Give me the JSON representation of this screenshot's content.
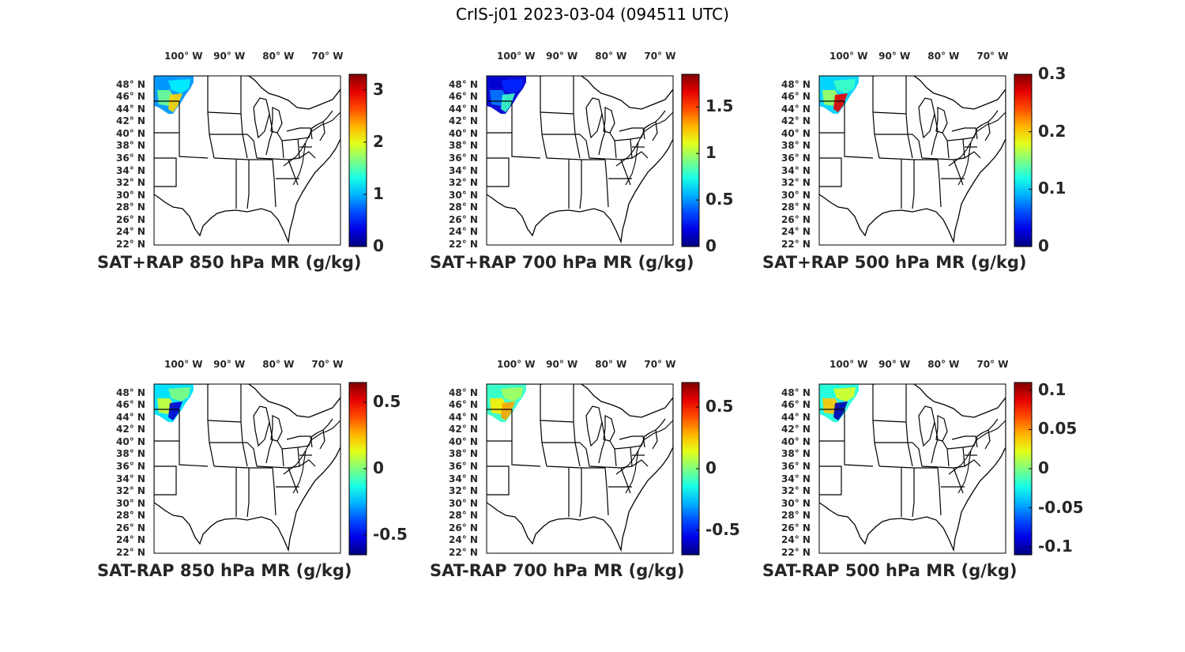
{
  "figure": {
    "title": "CrIS-j01 2023-03-04 (094511 UTC)"
  },
  "axes": {
    "lon_labels": [
      "100° W",
      "90° W",
      "80° W",
      "70° W"
    ],
    "lon_values": [
      100,
      90,
      80,
      70
    ],
    "lat_labels": [
      "48° N",
      "46° N",
      "44° N",
      "42° N",
      "40° N",
      "38° N",
      "36° N",
      "34° N",
      "32° N",
      "30° N",
      "28° N",
      "26° N",
      "24° N",
      "22° N"
    ],
    "lat_values": [
      48,
      46,
      44,
      42,
      40,
      38,
      36,
      34,
      32,
      30,
      28,
      26,
      24,
      22
    ],
    "extent": {
      "lon_min": -105,
      "lon_max": -67,
      "lat_min": 22,
      "lat_max": 49.5
    }
  },
  "colormap": "jet",
  "panels": [
    {
      "title": "SAT+RAP 850 hPa MR (g/kg)",
      "clim": [
        0,
        3.3
      ],
      "colorbar_ticks": [
        0,
        1,
        2,
        3
      ],
      "colorbar_tick_labels": [
        "0",
        "1",
        "2",
        "3"
      ],
      "field_levels": [
        0.9,
        1.2,
        1.6,
        2.2
      ]
    },
    {
      "title": "SAT+RAP 700 hPa MR (g/kg)",
      "clim": [
        0,
        1.85
      ],
      "colorbar_ticks": [
        0,
        0.5,
        1,
        1.5
      ],
      "colorbar_tick_labels": [
        "0",
        "0.5",
        "1",
        "1.5"
      ],
      "field_levels": [
        0.15,
        0.3,
        0.45,
        0.8
      ]
    },
    {
      "title": "SAT+RAP 500 hPa MR (g/kg)",
      "clim": [
        0,
        0.3
      ],
      "colorbar_ticks": [
        0,
        0.1,
        0.2,
        0.3
      ],
      "colorbar_tick_labels": [
        "0",
        "0.1",
        "0.2",
        "0.3"
      ],
      "field_levels": [
        0.1,
        0.13,
        0.16,
        0.27
      ]
    },
    {
      "title": "SAT-RAP 850 hPa MR (g/kg)",
      "clim": [
        -0.65,
        0.65
      ],
      "colorbar_ticks": [
        -0.5,
        0,
        0.5
      ],
      "colorbar_tick_labels": [
        "-0.5",
        "0",
        "0.5"
      ],
      "field_levels": [
        -0.2,
        0,
        0.1,
        -0.55
      ]
    },
    {
      "title": "SAT-RAP 700 hPa MR (g/kg)",
      "clim": [
        -0.7,
        0.7
      ],
      "colorbar_ticks": [
        -0.5,
        0,
        0.5
      ],
      "colorbar_tick_labels": [
        "-0.5",
        "0",
        "0.5"
      ],
      "field_levels": [
        -0.1,
        0.05,
        0.2,
        0.3
      ]
    },
    {
      "title": "SAT-RAP 500 hPa MR (g/kg)",
      "clim": [
        -0.11,
        0.11
      ],
      "colorbar_ticks": [
        -0.1,
        -0.05,
        0,
        0.05,
        0.1
      ],
      "colorbar_tick_labels": [
        "-0.1",
        "-0.05",
        "0",
        "0.05",
        "0.1"
      ],
      "field_levels": [
        -0.02,
        0.02,
        0.04,
        -0.1
      ]
    }
  ]
}
